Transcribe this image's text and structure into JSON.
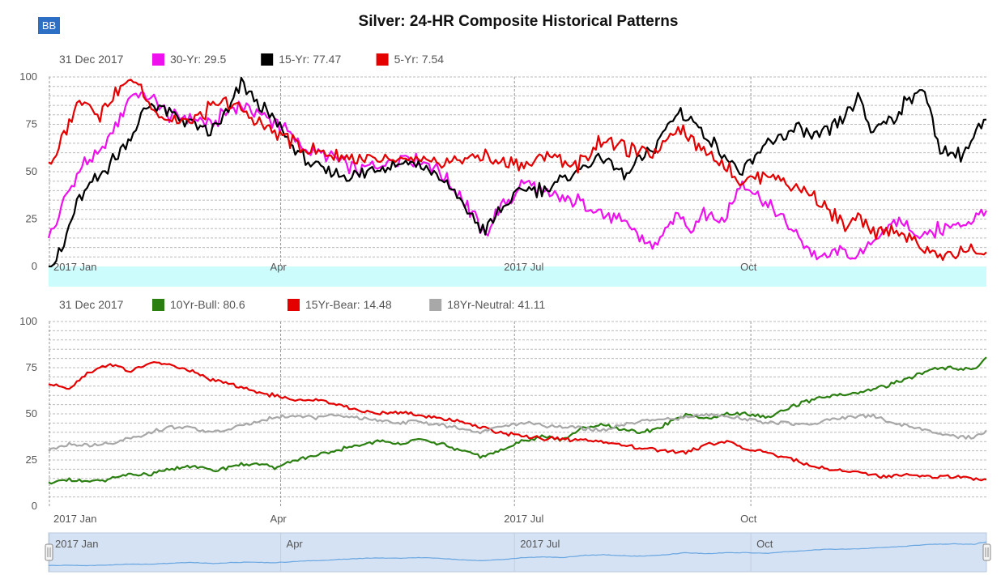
{
  "logo": "BB",
  "title": "Silver: 24-HR Composite Historical Patterns",
  "colors": {
    "magenta": "#ee11ee",
    "black": "#000000",
    "red": "#e50000",
    "green": "#2a7f10",
    "gray": "#a8a8a8",
    "cyan_band": "#ccfcfc",
    "navigator_bg": "#d4e2f4",
    "navigator_line": "#6aa6e0",
    "grid": "#bbbbbb"
  },
  "chart_data": [
    {
      "type": "line",
      "name": "top-panel",
      "date_label": "31 Dec 2017",
      "ylim": [
        0,
        100
      ],
      "yticks": [
        0,
        25,
        50,
        75,
        100
      ],
      "x_ticks": [
        "2017 Jan",
        "Apr",
        "2017 Jul",
        "Oct"
      ],
      "legend": [
        {
          "label": "30-Yr: 29.5",
          "color": "#ee11ee"
        },
        {
          "label": "15-Yr: 77.47",
          "color": "#000000"
        },
        {
          "label": "5-Yr: 7.54",
          "color": "#e50000"
        }
      ],
      "series": [
        {
          "name": "30-Yr",
          "color": "#ee11ee",
          "x": [
            0,
            3,
            6,
            10,
            14,
            20,
            26,
            33,
            40,
            47,
            55,
            63,
            70,
            75,
            80,
            90,
            100,
            110,
            120,
            130,
            140,
            150,
            160,
            170,
            175,
            180,
            185,
            195,
            205,
            215,
            225,
            235,
            245,
            250,
            255,
            262,
            270,
            280,
            290,
            300,
            310,
            315,
            320,
            330,
            340,
            347,
            355,
            365
          ],
          "y": [
            15,
            22,
            35,
            45,
            55,
            58,
            75,
            92,
            88,
            80,
            78,
            75,
            82,
            85,
            82,
            75,
            62,
            58,
            50,
            54,
            58,
            53,
            38,
            17,
            30,
            35,
            45,
            37,
            35,
            28,
            22,
            10,
            27,
            20,
            30,
            23,
            45,
            32,
            18,
            3,
            9,
            3,
            14,
            24,
            16,
            20,
            22,
            29.5
          ]
        },
        {
          "name": "15-Yr",
          "color": "#000000",
          "x": [
            0,
            3,
            6,
            10,
            14,
            20,
            26,
            33,
            40,
            47,
            55,
            63,
            70,
            75,
            80,
            90,
            100,
            110,
            120,
            130,
            140,
            150,
            160,
            170,
            175,
            180,
            185,
            195,
            205,
            215,
            225,
            235,
            245,
            250,
            255,
            262,
            270,
            280,
            290,
            300,
            310,
            315,
            320,
            330,
            340,
            347,
            355,
            365
          ],
          "y": [
            0,
            3,
            12,
            30,
            40,
            48,
            57,
            72,
            86,
            82,
            76,
            70,
            82,
            96,
            88,
            74,
            55,
            50,
            48,
            53,
            55,
            50,
            35,
            18,
            28,
            35,
            40,
            42,
            50,
            58,
            48,
            62,
            82,
            78,
            70,
            60,
            48,
            65,
            72,
            68,
            78,
            88,
            72,
            80,
            96,
            62,
            58,
            77.47
          ]
        },
        {
          "name": "5-Yr",
          "color": "#e50000",
          "x": [
            0,
            3,
            6,
            10,
            14,
            20,
            26,
            33,
            40,
            47,
            55,
            63,
            70,
            75,
            80,
            90,
            100,
            110,
            120,
            130,
            140,
            150,
            160,
            170,
            175,
            180,
            185,
            195,
            205,
            215,
            225,
            235,
            245,
            250,
            255,
            262,
            270,
            280,
            290,
            300,
            310,
            315,
            320,
            330,
            340,
            347,
            355,
            365
          ],
          "y": [
            55,
            57,
            70,
            82,
            88,
            80,
            93,
            98,
            84,
            78,
            76,
            84,
            86,
            82,
            78,
            70,
            62,
            58,
            57,
            55,
            56,
            54,
            56,
            58,
            55,
            55,
            53,
            60,
            52,
            67,
            62,
            58,
            75,
            68,
            60,
            55,
            44,
            50,
            42,
            35,
            20,
            25,
            18,
            20,
            10,
            5,
            8,
            7.54
          ]
        }
      ]
    },
    {
      "type": "line",
      "name": "bottom-panel",
      "date_label": "31 Dec 2017",
      "ylim": [
        0,
        100
      ],
      "yticks": [
        0,
        25,
        50,
        75,
        100
      ],
      "x_ticks": [
        "2017 Jan",
        "Apr",
        "2017 Jul",
        "Oct"
      ],
      "legend": [
        {
          "label": "10Yr-Bull: 80.6",
          "color": "#2a7f10"
        },
        {
          "label": "15Yr-Bear: 14.48",
          "color": "#e50000"
        },
        {
          "label": "18Yr-Neutral: 41.11",
          "color": "#a8a8a8"
        }
      ],
      "series": [
        {
          "name": "10Yr-Bull",
          "color": "#2a7f10",
          "x": [
            0,
            8,
            16,
            24,
            32,
            40,
            48,
            56,
            64,
            72,
            80,
            88,
            96,
            104,
            112,
            120,
            128,
            136,
            144,
            152,
            160,
            168,
            176,
            184,
            192,
            200,
            208,
            216,
            224,
            232,
            240,
            248,
            256,
            264,
            272,
            280,
            288,
            296,
            304,
            312,
            320,
            328,
            336,
            344,
            352,
            360,
            365
          ],
          "y": [
            13,
            14,
            13,
            15,
            17,
            17,
            20,
            22,
            19,
            22,
            23,
            21,
            25,
            27,
            30,
            33,
            35,
            34,
            36,
            34,
            30,
            27,
            30,
            35,
            38,
            36,
            42,
            44,
            41,
            40,
            44,
            50,
            47,
            50,
            50,
            48,
            53,
            57,
            60,
            60,
            63,
            66,
            70,
            74,
            75,
            74,
            80.6
          ]
        },
        {
          "name": "15Yr-Bear",
          "color": "#e50000",
          "x": [
            0,
            8,
            16,
            24,
            32,
            40,
            48,
            56,
            64,
            72,
            80,
            88,
            96,
            104,
            112,
            120,
            128,
            136,
            144,
            152,
            160,
            168,
            176,
            184,
            192,
            200,
            208,
            216,
            224,
            232,
            240,
            248,
            256,
            264,
            272,
            280,
            288,
            296,
            304,
            312,
            320,
            328,
            336,
            344,
            352,
            360,
            365
          ],
          "y": [
            66,
            64,
            73,
            77,
            73,
            78,
            76,
            73,
            68,
            66,
            62,
            60,
            57,
            58,
            55,
            52,
            50,
            51,
            49,
            48,
            46,
            43,
            40,
            38,
            37,
            36,
            36,
            35,
            33,
            31,
            30,
            29,
            33,
            35,
            31,
            29,
            26,
            22,
            20,
            19,
            17,
            16,
            17,
            16,
            16,
            15,
            14.48
          ]
        },
        {
          "name": "18Yr-Neutral",
          "color": "#a8a8a8",
          "x": [
            0,
            8,
            16,
            24,
            32,
            40,
            48,
            56,
            64,
            72,
            80,
            88,
            96,
            104,
            112,
            120,
            128,
            136,
            144,
            152,
            160,
            168,
            176,
            184,
            192,
            200,
            208,
            216,
            224,
            232,
            240,
            248,
            256,
            264,
            272,
            280,
            288,
            296,
            304,
            312,
            320,
            328,
            336,
            344,
            352,
            360,
            365
          ],
          "y": [
            30,
            34,
            33,
            34,
            37,
            40,
            43,
            42,
            40,
            42,
            46,
            48,
            49,
            48,
            49,
            48,
            46,
            45,
            46,
            44,
            42,
            40,
            43,
            45,
            44,
            43,
            42,
            41,
            44,
            46,
            47,
            48,
            50,
            49,
            47,
            45,
            45,
            44,
            47,
            48,
            49,
            45,
            43,
            40,
            38,
            37,
            41.11
          ]
        }
      ]
    }
  ],
  "navigator": {
    "x_ticks": [
      "2017 Jan",
      "Apr",
      "2017 Jul",
      "Oct"
    ]
  }
}
